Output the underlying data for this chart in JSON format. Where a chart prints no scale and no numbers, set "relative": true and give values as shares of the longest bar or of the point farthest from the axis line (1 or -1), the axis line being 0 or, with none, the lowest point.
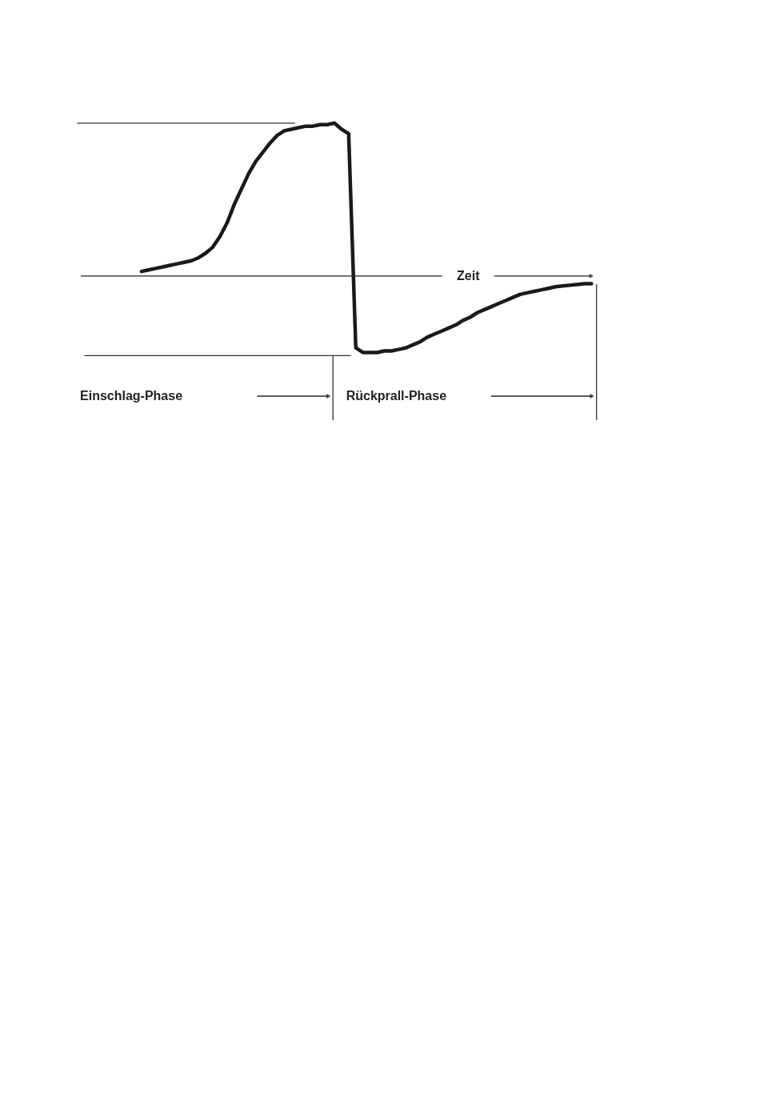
{
  "chart_data": {
    "type": "line",
    "relative": true,
    "xlabel": "Zeit",
    "color": "#1a1a1a",
    "marker": "none",
    "line_style": "solid",
    "categories": [
      null,
      null,
      null,
      null,
      null,
      null,
      null,
      null,
      null,
      null,
      null,
      null,
      null,
      null,
      null,
      null,
      null,
      null,
      null,
      null,
      null,
      null,
      null,
      null,
      null,
      null,
      null,
      null,
      null,
      null,
      null,
      null,
      null,
      null,
      null,
      null,
      null,
      null,
      null,
      null,
      null,
      null,
      null,
      null,
      null,
      null,
      null,
      null,
      null,
      null,
      null,
      null,
      null,
      null,
      null,
      null,
      null,
      null,
      null,
      null,
      null,
      null,
      null,
      null
    ],
    "values": [
      0.03,
      0.04,
      0.05,
      0.06,
      0.07,
      0.08,
      0.09,
      0.1,
      0.12,
      0.15,
      0.19,
      0.26,
      0.35,
      0.47,
      0.57,
      0.67,
      0.75,
      0.81,
      0.87,
      0.92,
      0.95,
      0.96,
      0.97,
      0.98,
      0.98,
      0.99,
      0.99,
      1.0,
      0.96,
      0.93,
      -0.47,
      -0.5,
      -0.5,
      -0.5,
      -0.49,
      -0.49,
      -0.48,
      -0.47,
      -0.45,
      -0.43,
      -0.4,
      -0.38,
      -0.36,
      -0.34,
      -0.32,
      -0.29,
      -0.27,
      -0.24,
      -0.22,
      -0.2,
      -0.18,
      -0.16,
      -0.14,
      -0.12,
      -0.11,
      -0.1,
      -0.09,
      -0.08,
      -0.07,
      -0.065,
      -0.06,
      -0.055,
      -0.05,
      -0.05
    ],
    "annotations": [
      "Einschlag-Phase",
      "Rückprall-Phase"
    ]
  }
}
